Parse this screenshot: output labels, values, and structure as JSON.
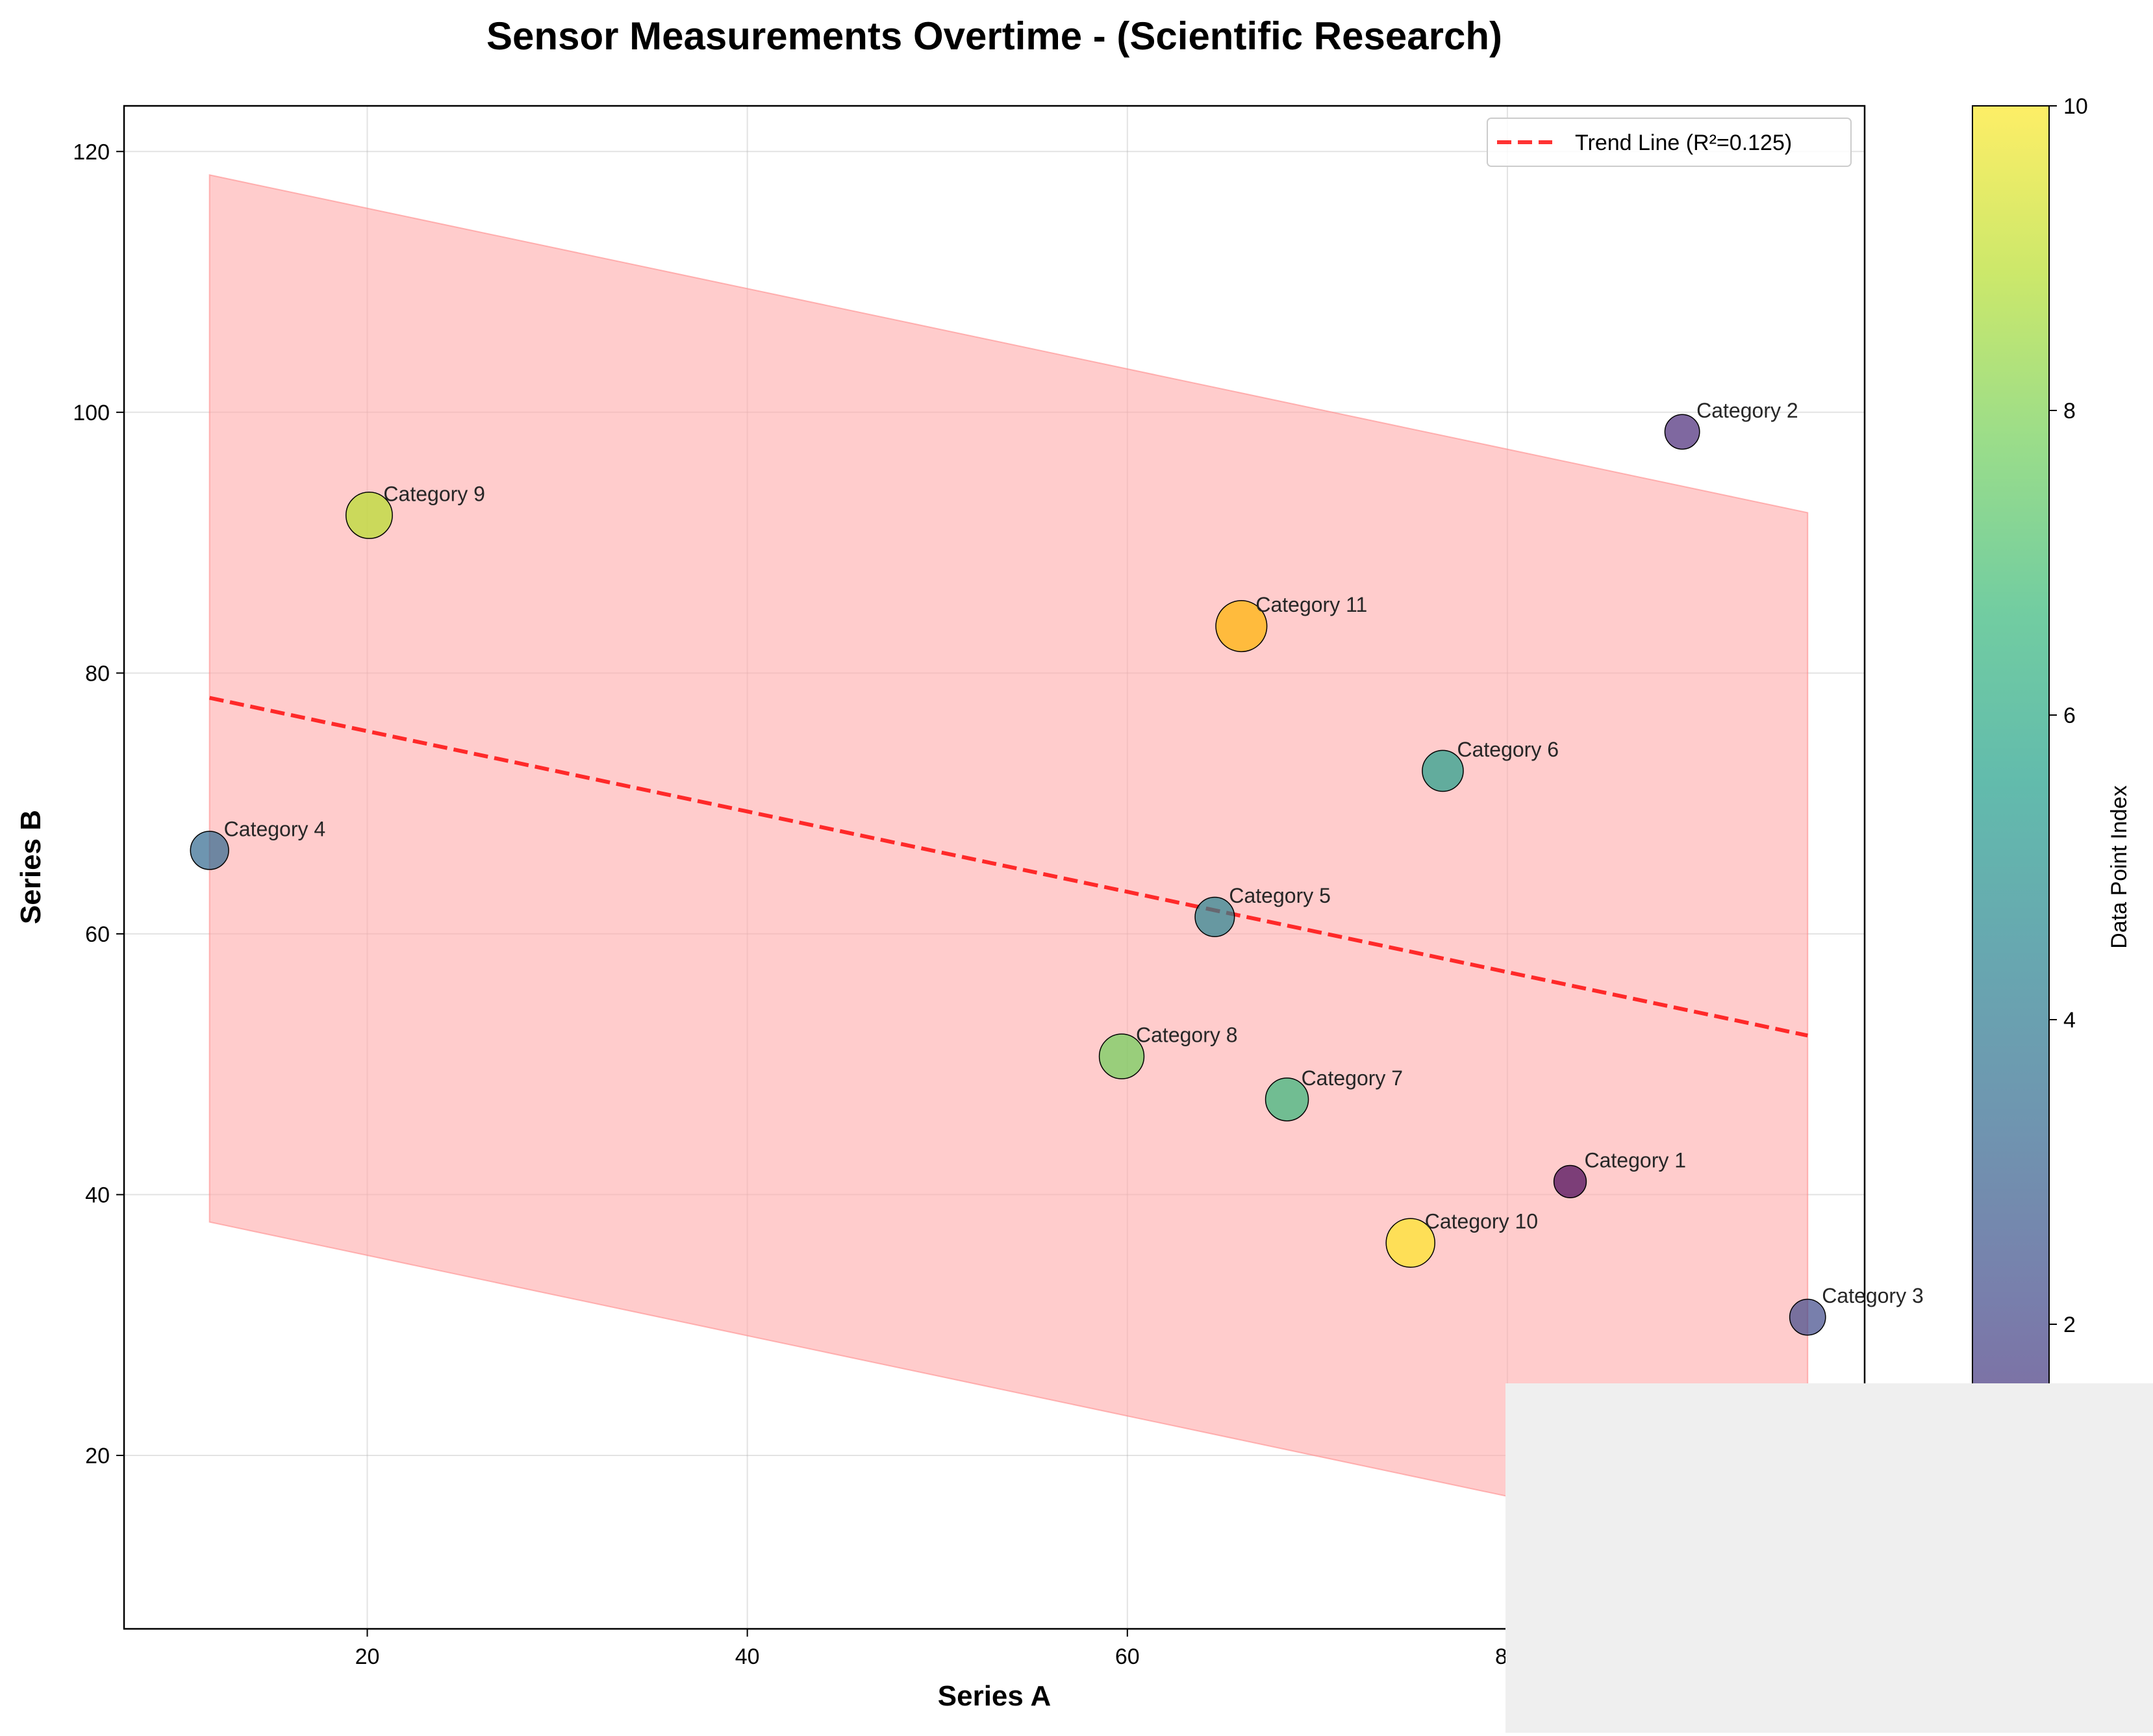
{
  "chart_data": {
    "type": "scatter",
    "title": "Sensor Measurements Overtime - (Scientific Research)",
    "xlabel": "Series A",
    "ylabel": "Series B",
    "xlim": [
      7.2,
      98.8
    ],
    "ylim": [
      6.7,
      123.5
    ],
    "xticks": [
      20,
      40,
      60,
      80
    ],
    "yticks": [
      20,
      40,
      60,
      80,
      100,
      120
    ],
    "grid": true,
    "points": [
      {
        "label": "Category 1",
        "x": 83.3,
        "y": 41.0,
        "index": 0,
        "color": "#440154",
        "size": 0.55
      },
      {
        "label": "Category 2",
        "x": 89.2,
        "y": 98.5,
        "index": 1,
        "color": "#482878",
        "size": 0.65
      },
      {
        "label": "Category 3",
        "x": 95.8,
        "y": 30.6,
        "index": 2,
        "color": "#3e4989",
        "size": 0.7
      },
      {
        "label": "Category 4",
        "x": 11.7,
        "y": 66.4,
        "index": 3,
        "color": "#31688e",
        "size": 0.8
      },
      {
        "label": "Category 5",
        "x": 64.6,
        "y": 61.3,
        "index": 4,
        "color": "#26828e",
        "size": 0.85
      },
      {
        "label": "Category 6",
        "x": 76.6,
        "y": 72.5,
        "index": 5,
        "color": "#1f9e89",
        "size": 0.92
      },
      {
        "label": "Category 7",
        "x": 68.4,
        "y": 47.3,
        "index": 6,
        "color": "#35b779",
        "size": 1.0
      },
      {
        "label": "Category 8",
        "x": 59.7,
        "y": 50.6,
        "index": 7,
        "color": "#6ece58",
        "size": 1.08
      },
      {
        "label": "Category 9",
        "x": 20.1,
        "y": 92.1,
        "index": 8,
        "color": "#b5de2b",
        "size": 1.15
      },
      {
        "label": "Category 10",
        "x": 74.9,
        "y": 36.3,
        "index": 9,
        "color": "#fde725",
        "size": 1.25
      },
      {
        "label": "Category 11",
        "x": 66.0,
        "y": 83.6,
        "index": 10,
        "color": "#ffb300",
        "size": 1.35
      }
    ],
    "trend_line": {
      "label": "Trend Line (R²=0.125)",
      "x_start": 11.7,
      "y_start": 78.1,
      "x_end": 95.8,
      "y_end": 52.2,
      "color": "#ff0000"
    },
    "confidence_band": {
      "x": [
        11.7,
        95.8
      ],
      "upper": [
        118.2,
        92.3
      ],
      "lower": [
        37.9,
        12.0
      ],
      "color": "#ffaaaa"
    },
    "legend_placement": "upper right",
    "colorbar": {
      "label": "Data Point Index",
      "min": 0,
      "max": 10,
      "ticks": [
        2,
        4,
        6,
        8,
        10
      ],
      "colormap": [
        "#440154",
        "#482878",
        "#3e4989",
        "#31688e",
        "#26828e",
        "#1f9e89",
        "#35b779",
        "#6ece58",
        "#b5de2b",
        "#fde725"
      ]
    }
  }
}
